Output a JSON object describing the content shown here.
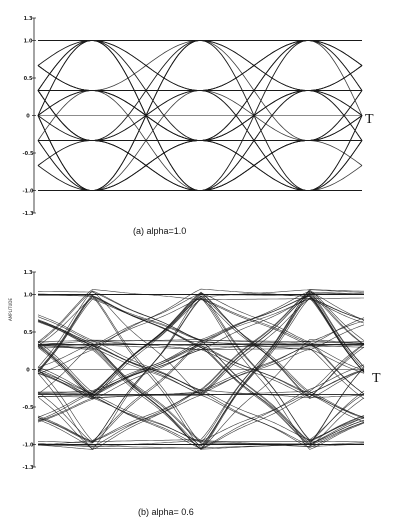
{
  "chart_data": [
    {
      "type": "line",
      "caption": "(a) alpha=1.0",
      "xlabel": "",
      "ylabel": "",
      "t_marker": "T",
      "ylim": [
        -1.3,
        1.3
      ],
      "xlim": [
        0,
        3
      ],
      "yticks": [
        "1.3",
        "1.0",
        "0.5",
        "0",
        "-0.5",
        "-1.0",
        "-1.3"
      ],
      "ytick_values": [
        1.3,
        1.0,
        0.5,
        0,
        -0.5,
        -1.0,
        -1.3
      ],
      "alpha": 1.0,
      "eye_levels": [
        -1.0,
        -0.333,
        0.333,
        1.0
      ],
      "symbol_periods": 3
    },
    {
      "type": "line",
      "caption": "(b) alpha= 0.6",
      "xlabel": "",
      "ylabel": "AMPLITUDE",
      "t_marker": "T",
      "ylim": [
        -1.3,
        1.3
      ],
      "xlim": [
        0,
        3
      ],
      "yticks": [
        "1.3",
        "1.0",
        "0.5",
        "0",
        "-0.5",
        "-1.0",
        "-1.3"
      ],
      "ytick_values": [
        1.3,
        1.0,
        0.5,
        0,
        -0.5,
        -1.0,
        -1.3
      ],
      "alpha": 0.6,
      "eye_levels": [
        -1.0,
        -0.333,
        0.333,
        1.0
      ],
      "symbol_periods": 3
    }
  ],
  "colors": {
    "ink": "#1a1a1a",
    "paper": "#ffffff"
  }
}
